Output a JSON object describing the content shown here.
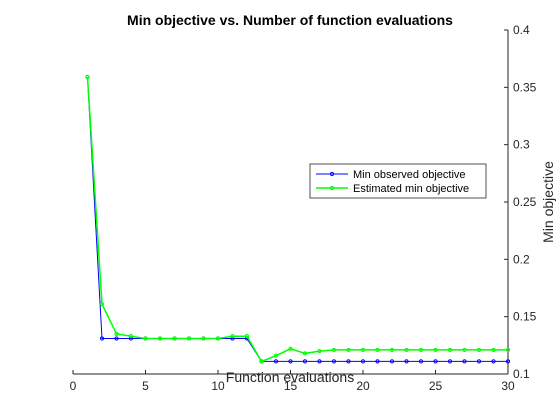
{
  "chart_data": {
    "type": "line",
    "title": "Min objective vs. Number of function evaluations",
    "xlabel": "Function evaluations",
    "ylabel": "Min objective",
    "xlim": [
      0,
      30
    ],
    "ylim": [
      0.1,
      0.4
    ],
    "xticks": [
      0,
      5,
      10,
      15,
      20,
      25,
      30
    ],
    "yticks": [
      0.1,
      0.15,
      0.2,
      0.25,
      0.3,
      0.35,
      0.4
    ],
    "xtick_labels": [
      "0",
      "5",
      "10",
      "15",
      "20",
      "25",
      "30"
    ],
    "ytick_labels": [
      "0.1",
      "0.15",
      "0.2",
      "0.25",
      "0.3",
      "0.35",
      "0.4"
    ],
    "y_axis_side": "right",
    "grid": false,
    "legend_position": "right",
    "x": [
      1,
      2,
      3,
      4,
      5,
      6,
      7,
      8,
      9,
      10,
      11,
      12,
      13,
      14,
      15,
      16,
      17,
      18,
      19,
      20,
      21,
      22,
      23,
      24,
      25,
      26,
      27,
      28,
      29,
      30
    ],
    "series": [
      {
        "name": "Min observed objective",
        "color": "#0000ff",
        "values": [
          0.359,
          0.131,
          0.131,
          0.131,
          0.131,
          0.131,
          0.131,
          0.131,
          0.131,
          0.131,
          0.131,
          0.131,
          0.111,
          0.111,
          0.111,
          0.111,
          0.111,
          0.111,
          0.111,
          0.111,
          0.111,
          0.111,
          0.111,
          0.111,
          0.111,
          0.111,
          0.111,
          0.111,
          0.111,
          0.111
        ]
      },
      {
        "name": "Estimated min objective",
        "color": "#00ff00",
        "values": [
          0.359,
          0.161,
          0.135,
          0.133,
          0.131,
          0.131,
          0.131,
          0.131,
          0.131,
          0.131,
          0.133,
          0.133,
          0.111,
          0.116,
          0.122,
          0.118,
          0.12,
          0.121,
          0.121,
          0.121,
          0.121,
          0.121,
          0.121,
          0.121,
          0.121,
          0.121,
          0.121,
          0.121,
          0.121,
          0.121
        ]
      }
    ]
  }
}
